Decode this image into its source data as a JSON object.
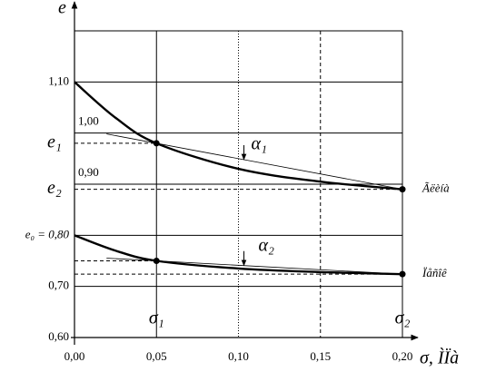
{
  "chart_data": {
    "type": "line",
    "x_label": "σ, ÌÏà",
    "y_label": "e",
    "x": [
      0,
      0.025,
      0.05,
      0.1,
      0.15,
      0.2
    ],
    "series": [
      {
        "name": "Ãëèíà",
        "color": "#000000",
        "values": [
          1.1,
          1.03,
          0.98,
          0.93,
          0.905,
          0.89
        ]
      },
      {
        "name": "Ïåñîê",
        "color": "#000000",
        "values": [
          0.8,
          0.77,
          0.75,
          0.735,
          0.728,
          0.724
        ]
      }
    ],
    "xlim": [
      0,
      0.2
    ],
    "ylim": [
      0.6,
      1.2
    ],
    "xticks": [
      {
        "value": 0,
        "label": "0,00"
      },
      {
        "value": 0.05,
        "label": "0,05"
      },
      {
        "value": 0.1,
        "label": "0,10"
      },
      {
        "value": 0.15,
        "label": "0,15"
      },
      {
        "value": 0.2,
        "label": "0,20"
      }
    ],
    "yticks": [
      {
        "value": 0.6,
        "label": "0,60"
      },
      {
        "value": 0.7,
        "label": "0,70"
      },
      {
        "value": 0.8,
        "label": "e₀ = 0,80"
      },
      {
        "value": 0.9,
        "label": "0,90"
      },
      {
        "value": 1.0,
        "label": "1,00"
      },
      {
        "value": 1.1,
        "label": "1,10"
      }
    ],
    "annotations": {
      "e1": "e₁",
      "e2": "e₂",
      "sigma1": "σ₁",
      "sigma2": "σ₂",
      "alpha1": "α₁",
      "alpha2": "α₂"
    },
    "grid": true
  }
}
